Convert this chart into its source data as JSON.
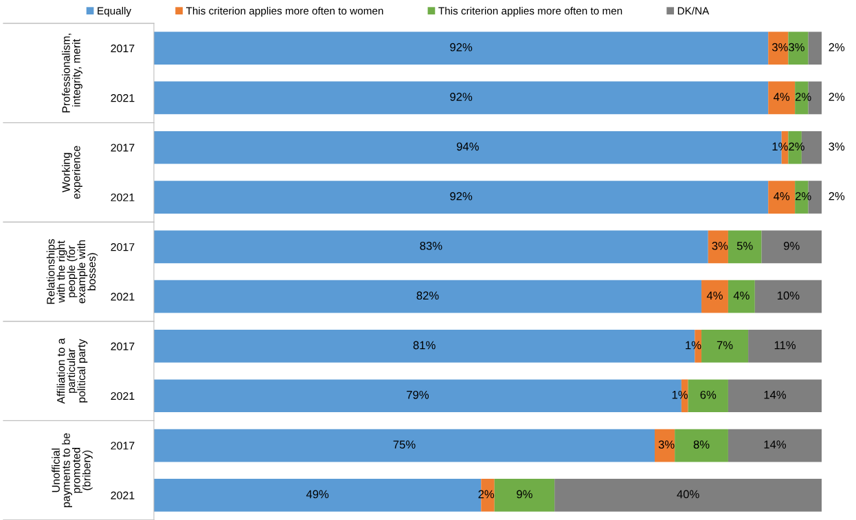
{
  "chart_data": {
    "type": "bar",
    "orientation": "horizontal",
    "stacked": true,
    "legend": "top",
    "grid": false,
    "tick_labels": "y",
    "categories": [
      "2017",
      "2021",
      "2017",
      "2021",
      "2017",
      "2021",
      "2017",
      "2021",
      "2017",
      "2021"
    ],
    "annotations": [
      "Professionalism,\nintegrity, merit",
      "Working\nexperience",
      "Relationships\nwith the right\npeople (for\nexample with\nbosses)",
      "Affiliation to a\nparticular\npolitical party",
      "Unofficial\npayments to be\npromoted\n(bribery)"
    ],
    "series": [
      {
        "name": "Equally",
        "color": "#5b9bd5",
        "values": [
          92,
          92,
          94,
          92,
          83,
          82,
          81,
          79,
          75,
          49
        ],
        "value_labels": [
          "92%",
          "92%",
          "94%",
          "92%",
          "83%",
          "82%",
          "81%",
          "79%",
          "75%",
          "49%"
        ]
      },
      {
        "name": "This criterion applies more often to women",
        "color": "#ed7d31",
        "values": [
          3,
          4,
          1,
          4,
          3,
          4,
          1,
          1,
          3,
          2
        ],
        "value_labels": [
          "3%",
          "4%",
          "1%",
          "4%",
          "3%",
          "4%",
          "1%",
          "1%",
          "3%",
          "2%"
        ]
      },
      {
        "name": "This criterion applies more often to men",
        "color": "#70ad47",
        "values": [
          3,
          2,
          2,
          2,
          5,
          4,
          7,
          6,
          8,
          9
        ],
        "value_labels": [
          "3%",
          "2%",
          "2%",
          "2%",
          "5%",
          "4%",
          "7%",
          "6%",
          "8%",
          "9%"
        ]
      },
      {
        "name": "DK/NA",
        "color": "#7f7f7f",
        "values": [
          2,
          2,
          3,
          2,
          9,
          10,
          11,
          14,
          14,
          40
        ],
        "value_labels": [
          "2%",
          "2%",
          "3%",
          "2%",
          "9%",
          "10%",
          "11%",
          "14%",
          "14%",
          "40%"
        ]
      }
    ]
  }
}
